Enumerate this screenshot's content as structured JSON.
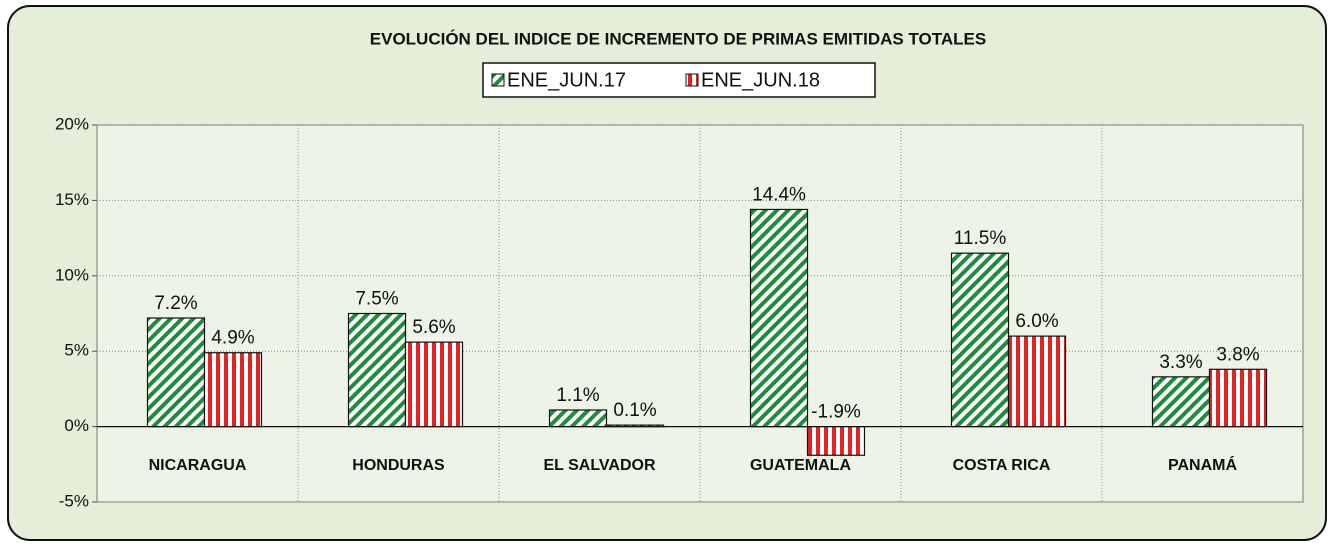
{
  "chart_data": {
    "type": "bar",
    "title": "EVOLUCIÓN DEL INDICE DE INCREMENTO DE PRIMAS EMITIDAS TOTALES",
    "categories": [
      "NICARAGUA",
      "HONDURAS",
      "EL SALVADOR",
      "GUATEMALA",
      "COSTA RICA",
      "PANAMÁ"
    ],
    "series": [
      {
        "name": "ENE_JUN.17",
        "color": "#1e8c3c",
        "values": [
          7.2,
          7.5,
          1.1,
          14.4,
          11.5,
          3.3
        ],
        "value_labels": [
          "7.2%",
          "7.5%",
          "1.1%",
          "14.4%",
          "11.5%",
          "3.3%"
        ]
      },
      {
        "name": "ENE_JUN.18",
        "color": "#e02424",
        "values": [
          4.9,
          5.6,
          0.1,
          -1.9,
          6.0,
          3.8
        ],
        "value_labels": [
          "4.9%",
          "5.6%",
          "0.1%",
          "-1.9%",
          "6.0%",
          "3.8%"
        ]
      }
    ],
    "ylim": [
      -5,
      20
    ],
    "yticks": [
      {
        "value": -5,
        "label": "-5%"
      },
      {
        "value": 0,
        "label": "0%"
      },
      {
        "value": 5,
        "label": "5%"
      },
      {
        "value": 10,
        "label": "10%"
      },
      {
        "value": 15,
        "label": "15%"
      },
      {
        "value": 20,
        "label": "20%"
      }
    ],
    "grid": true
  }
}
